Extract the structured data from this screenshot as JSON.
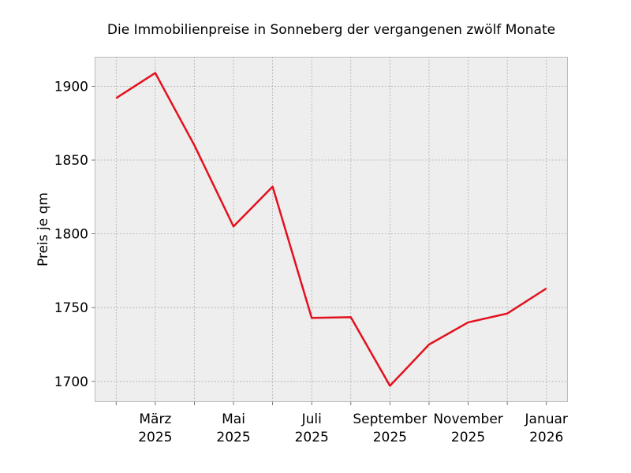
{
  "chart_data": {
    "type": "line",
    "title": "Die Immobilienpreise in Sonneberg der vergangenen zwölf Monate",
    "xlabel": "",
    "ylabel": "Preis je qm",
    "x": [
      "2025-02",
      "2025-03",
      "2025-04",
      "2025-05",
      "2025-06",
      "2025-07",
      "2025-08",
      "2025-09",
      "2025-10",
      "2025-11",
      "2025-12",
      "2026-01"
    ],
    "series": [
      {
        "name": "Preis je qm",
        "color": "#e3111e",
        "values": [
          1892,
          1909,
          1860,
          1805,
          1832,
          1743,
          1743.5,
          1697,
          1725,
          1740,
          1746,
          1763
        ]
      }
    ],
    "xticks": [
      {
        "index": 1,
        "line1": "März",
        "line2": "2025"
      },
      {
        "index": 3,
        "line1": "Mai",
        "line2": "2025"
      },
      {
        "index": 5,
        "line1": "Juli",
        "line2": "2025"
      },
      {
        "index": 7,
        "line1": "September",
        "line2": "2025"
      },
      {
        "index": 9,
        "line1": "November",
        "line2": "2025"
      },
      {
        "index": 11,
        "line1": "Januar",
        "line2": "2026"
      }
    ],
    "yticks": [
      1700,
      1750,
      1800,
      1850,
      1900
    ],
    "ylim": [
      1686,
      1920
    ],
    "xlim": [
      -0.55,
      11.55
    ],
    "grid": true,
    "background": "#eeeeee"
  }
}
